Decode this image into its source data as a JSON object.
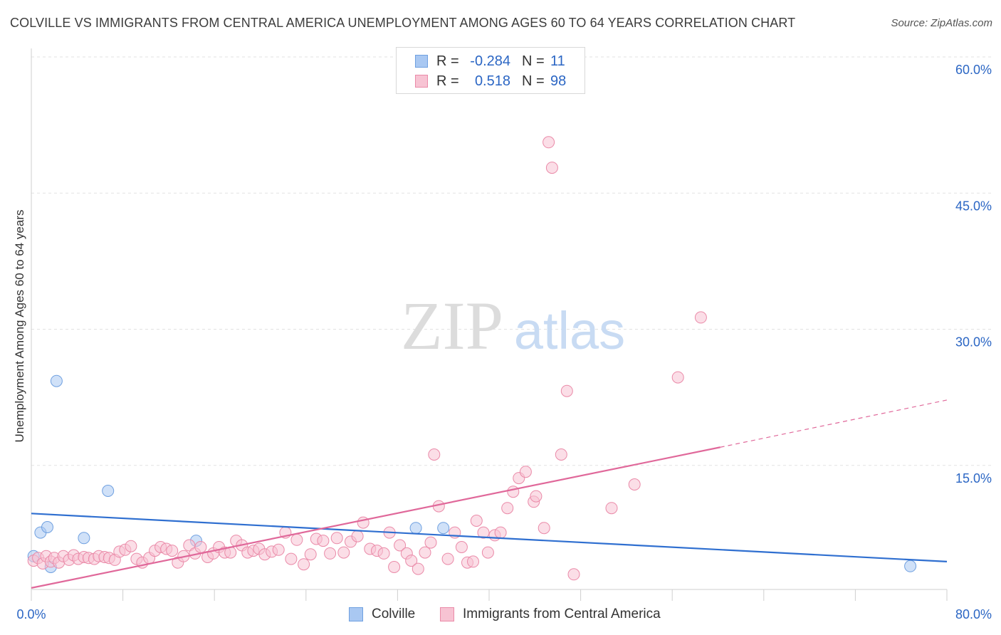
{
  "title": "COLVILLE VS IMMIGRANTS FROM CENTRAL AMERICA UNEMPLOYMENT AMONG AGES 60 TO 64 YEARS CORRELATION CHART",
  "source": "Source: ZipAtlas.com",
  "watermark": {
    "zip": "ZIP",
    "atlas": "atlas"
  },
  "stats": [
    {
      "r_label": "R =",
      "r_value": "-0.284",
      "n_label": "N =",
      "n_value": "11",
      "color": "#a9c8f2",
      "border": "#6fa0e0"
    },
    {
      "r_label": "R =",
      "r_value": "0.518",
      "n_label": "N =",
      "n_value": "98",
      "color": "#f7c3d3",
      "border": "#ea8aa8"
    }
  ],
  "legend": [
    {
      "label": "Colville",
      "color": "#a9c8f2",
      "border": "#6fa0e0"
    },
    {
      "label": "Immigrants from Central America",
      "color": "#f7c3d3",
      "border": "#ea8aa8"
    }
  ],
  "chart_data": {
    "type": "scatter",
    "title": "COLVILLE VS IMMIGRANTS FROM CENTRAL AMERICA UNEMPLOYMENT AMONG AGES 60 TO 64 YEARS CORRELATION CHART",
    "xlabel": "",
    "ylabel": "Unemployment Among Ages 60 to 64 years",
    "xlim": [
      0,
      80
    ],
    "ylim": [
      0,
      60
    ],
    "x_tick_labels": [
      "0.0%",
      "80.0%"
    ],
    "y_tick_values": [
      15,
      30,
      45,
      60
    ],
    "y_tick_labels": [
      "15.0%",
      "30.0%",
      "45.0%",
      "60.0%"
    ],
    "grid": true,
    "series": [
      {
        "name": "Colville",
        "color": "#a9c8f2",
        "stroke": "#6fa0e0",
        "trend": {
          "x": [
            0,
            80
          ],
          "y": [
            9.7,
            4.4
          ],
          "color": "#2f6fd0"
        },
        "points": [
          [
            0.2,
            5.0
          ],
          [
            0.8,
            7.6
          ],
          [
            1.4,
            8.2
          ],
          [
            1.7,
            3.8
          ],
          [
            2.2,
            24.3
          ],
          [
            4.6,
            7.0
          ],
          [
            6.7,
            12.2
          ],
          [
            14.4,
            6.7
          ],
          [
            33.6,
            8.1
          ],
          [
            36.0,
            8.1
          ],
          [
            76.8,
            3.9
          ]
        ]
      },
      {
        "name": "Immigrants from Central America",
        "color": "#f7c3d3",
        "stroke": "#ea8aa8",
        "trend": {
          "x": [
            0,
            60.2
          ],
          "y": [
            1.5,
            17.0
          ],
          "dashed_x": [
            60.2,
            80
          ],
          "dashed_y": [
            17.0,
            22.2
          ],
          "color": "#e0689a"
        },
        "points": [
          [
            0.2,
            4.5
          ],
          [
            0.6,
            4.8
          ],
          [
            1.0,
            4.2
          ],
          [
            1.3,
            5.0
          ],
          [
            1.7,
            4.4
          ],
          [
            2.0,
            4.8
          ],
          [
            2.4,
            4.3
          ],
          [
            2.8,
            5.0
          ],
          [
            3.3,
            4.6
          ],
          [
            3.7,
            5.1
          ],
          [
            4.1,
            4.7
          ],
          [
            4.6,
            4.9
          ],
          [
            5.0,
            4.8
          ],
          [
            5.5,
            4.7
          ],
          [
            5.9,
            5.0
          ],
          [
            6.4,
            4.9
          ],
          [
            6.8,
            4.8
          ],
          [
            7.3,
            4.6
          ],
          [
            7.7,
            5.5
          ],
          [
            8.2,
            5.7
          ],
          [
            8.7,
            6.1
          ],
          [
            9.2,
            4.7
          ],
          [
            9.7,
            4.3
          ],
          [
            10.3,
            4.8
          ],
          [
            10.8,
            5.6
          ],
          [
            11.3,
            6.0
          ],
          [
            11.8,
            5.8
          ],
          [
            12.3,
            5.6
          ],
          [
            12.8,
            4.3
          ],
          [
            13.3,
            5.0
          ],
          [
            13.8,
            6.2
          ],
          [
            14.3,
            5.3
          ],
          [
            14.8,
            6.0
          ],
          [
            15.4,
            4.9
          ],
          [
            15.9,
            5.3
          ],
          [
            16.4,
            6.0
          ],
          [
            16.9,
            5.4
          ],
          [
            17.4,
            5.4
          ],
          [
            17.9,
            6.7
          ],
          [
            18.4,
            6.2
          ],
          [
            18.9,
            5.4
          ],
          [
            19.4,
            5.6
          ],
          [
            19.9,
            5.8
          ],
          [
            20.4,
            5.2
          ],
          [
            21.0,
            5.5
          ],
          [
            21.6,
            5.7
          ],
          [
            22.2,
            7.6
          ],
          [
            22.7,
            4.7
          ],
          [
            23.2,
            6.8
          ],
          [
            23.8,
            4.1
          ],
          [
            24.4,
            5.2
          ],
          [
            24.9,
            6.9
          ],
          [
            25.5,
            6.7
          ],
          [
            26.1,
            5.3
          ],
          [
            26.7,
            7.0
          ],
          [
            27.3,
            5.4
          ],
          [
            27.9,
            6.6
          ],
          [
            28.5,
            7.2
          ],
          [
            29.0,
            8.7
          ],
          [
            29.6,
            5.8
          ],
          [
            30.2,
            5.6
          ],
          [
            30.8,
            5.3
          ],
          [
            31.3,
            7.6
          ],
          [
            31.7,
            3.8
          ],
          [
            32.2,
            6.2
          ],
          [
            32.8,
            5.3
          ],
          [
            33.2,
            4.5
          ],
          [
            33.8,
            3.6
          ],
          [
            34.4,
            5.4
          ],
          [
            34.9,
            6.5
          ],
          [
            35.2,
            16.2
          ],
          [
            35.6,
            10.5
          ],
          [
            36.4,
            4.7
          ],
          [
            37.0,
            7.6
          ],
          [
            37.6,
            6.0
          ],
          [
            38.1,
            4.3
          ],
          [
            38.6,
            4.4
          ],
          [
            38.9,
            8.9
          ],
          [
            39.5,
            7.6
          ],
          [
            39.9,
            5.4
          ],
          [
            40.5,
            7.3
          ],
          [
            41.0,
            7.6
          ],
          [
            41.6,
            10.3
          ],
          [
            42.1,
            12.1
          ],
          [
            42.6,
            13.6
          ],
          [
            43.2,
            14.3
          ],
          [
            43.9,
            11.0
          ],
          [
            44.1,
            11.6
          ],
          [
            44.8,
            8.1
          ],
          [
            45.2,
            50.6
          ],
          [
            45.5,
            47.8
          ],
          [
            46.3,
            16.2
          ],
          [
            46.8,
            23.2
          ],
          [
            47.4,
            3.0
          ],
          [
            50.7,
            10.3
          ],
          [
            52.7,
            12.9
          ],
          [
            56.5,
            24.7
          ],
          [
            58.5,
            31.3
          ]
        ]
      }
    ]
  }
}
